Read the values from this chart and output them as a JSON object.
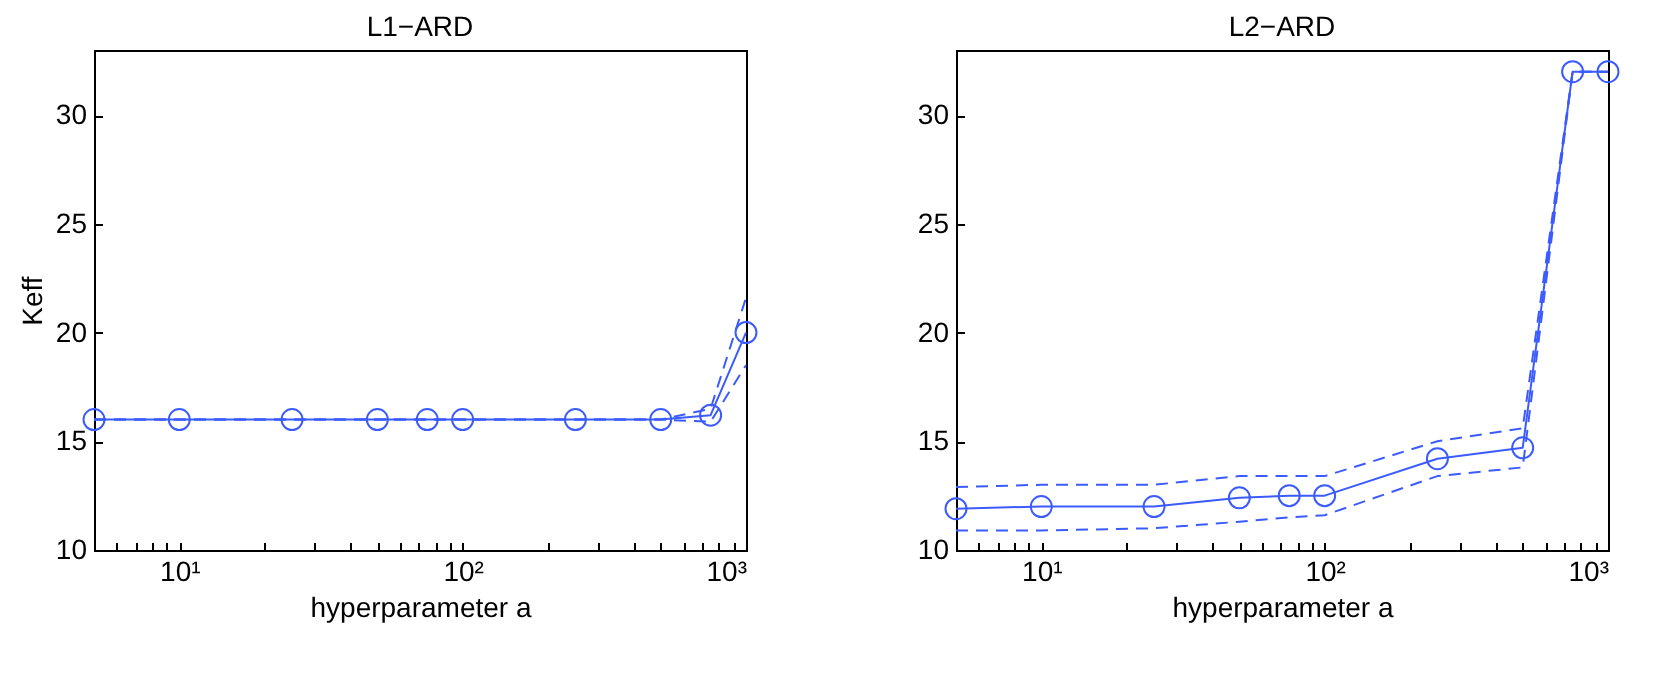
{
  "chart_data": [
    {
      "type": "line",
      "title": "L1−ARD",
      "xlabel": "hyperparameter a",
      "ylabel": "Keff",
      "log": "x",
      "grid": false,
      "marker": "circle",
      "line_style": "solid",
      "x": [
        5,
        10,
        25,
        50,
        75,
        100,
        250,
        500,
        750,
        1000
      ],
      "xlim": [
        5,
        1000
      ],
      "ylim": [
        10,
        33
      ],
      "xticks": [
        {
          "value": 6,
          "label": null
        },
        {
          "value": 7,
          "label": null
        },
        {
          "value": 8,
          "label": null
        },
        {
          "value": 9,
          "label": null
        },
        {
          "value": 10,
          "label": "10¹"
        },
        {
          "value": 20,
          "label": null
        },
        {
          "value": 30,
          "label": null
        },
        {
          "value": 40,
          "label": null
        },
        {
          "value": 50,
          "label": null
        },
        {
          "value": 60,
          "label": null
        },
        {
          "value": 70,
          "label": null
        },
        {
          "value": 80,
          "label": null
        },
        {
          "value": 90,
          "label": null
        },
        {
          "value": 100,
          "label": "10²"
        },
        {
          "value": 200,
          "label": null
        },
        {
          "value": 300,
          "label": null
        },
        {
          "value": 400,
          "label": null
        },
        {
          "value": 500,
          "label": null
        },
        {
          "value": 600,
          "label": null
        },
        {
          "value": 700,
          "label": null
        },
        {
          "value": 800,
          "label": null
        },
        {
          "value": 900,
          "label": null
        },
        {
          "value": 1000,
          "label": "10³"
        }
      ],
      "yticks": [
        10,
        15,
        20,
        25,
        30
      ],
      "series": [
        {
          "color": "#3b5bff",
          "values": [
            16,
            16,
            16,
            16,
            16,
            16,
            16,
            16,
            16.2,
            20
          ]
        },
        {
          "color": "#3b5bff",
          "line_style": "dashed",
          "marker": "none",
          "values": [
            16,
            16,
            16,
            16,
            16,
            16,
            16,
            16,
            15.9,
            18.5
          ]
        },
        {
          "color": "#3b5bff",
          "line_style": "dashed",
          "marker": "none",
          "values": [
            16,
            16,
            16,
            16,
            16,
            16,
            16,
            16,
            16.5,
            21.6
          ]
        }
      ]
    },
    {
      "type": "line",
      "title": "L2−ARD",
      "xlabel": "hyperparameter a",
      "log": "x",
      "grid": false,
      "marker": "circle",
      "line_style": "solid",
      "x": [
        5,
        10,
        25,
        50,
        75,
        100,
        250,
        500,
        750,
        1000
      ],
      "xlim": [
        5,
        1000
      ],
      "ylim": [
        10,
        33
      ],
      "xticks": [
        {
          "value": 6,
          "label": null
        },
        {
          "value": 7,
          "label": null
        },
        {
          "value": 8,
          "label": null
        },
        {
          "value": 9,
          "label": null
        },
        {
          "value": 10,
          "label": "10¹"
        },
        {
          "value": 20,
          "label": null
        },
        {
          "value": 30,
          "label": null
        },
        {
          "value": 40,
          "label": null
        },
        {
          "value": 50,
          "label": null
        },
        {
          "value": 60,
          "label": null
        },
        {
          "value": 70,
          "label": null
        },
        {
          "value": 80,
          "label": null
        },
        {
          "value": 90,
          "label": null
        },
        {
          "value": 100,
          "label": "10²"
        },
        {
          "value": 200,
          "label": null
        },
        {
          "value": 300,
          "label": null
        },
        {
          "value": 400,
          "label": null
        },
        {
          "value": 500,
          "label": null
        },
        {
          "value": 600,
          "label": null
        },
        {
          "value": 700,
          "label": null
        },
        {
          "value": 800,
          "label": null
        },
        {
          "value": 900,
          "label": null
        },
        {
          "value": 1000,
          "label": "10³"
        }
      ],
      "yticks": [
        10,
        15,
        20,
        25,
        30
      ],
      "series": [
        {
          "color": "#3b5bff",
          "values": [
            11.9,
            12,
            12,
            12.4,
            12.5,
            12.5,
            14.2,
            14.7,
            32,
            32
          ]
        },
        {
          "color": "#3b5bff",
          "line_style": "dashed",
          "marker": "none",
          "values": [
            10.9,
            10.9,
            11,
            11.3,
            11.5,
            11.6,
            13.4,
            13.8,
            32,
            32
          ]
        },
        {
          "color": "#3b5bff",
          "line_style": "dashed",
          "marker": "none",
          "values": [
            12.9,
            13,
            13,
            13.4,
            13.4,
            13.4,
            15,
            15.6,
            32,
            32
          ]
        }
      ]
    }
  ]
}
